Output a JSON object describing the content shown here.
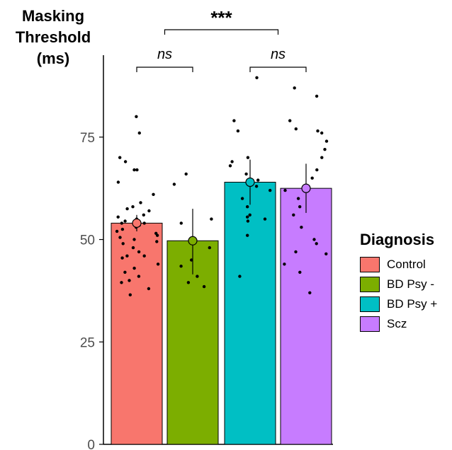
{
  "chart_data": {
    "type": "bar",
    "ylabel": "Masking Threshold (ms)",
    "ylabel_lines": [
      "Masking",
      "Threshold",
      "(ms)"
    ],
    "ylim": [
      0,
      95
    ],
    "yticks": [
      0,
      25,
      50,
      75
    ],
    "grid": false,
    "legend_placement": "right",
    "categories": [
      "Control",
      "BD Psy -",
      "BD Psy +",
      "Scz"
    ],
    "values": [
      54,
      49.7,
      64,
      62.5
    ],
    "error_low": [
      52.0,
      41.5,
      58.5,
      56.5
    ],
    "error_high": [
      56.0,
      57.5,
      69.5,
      68.5
    ],
    "colors": [
      "#F8766D",
      "#7CAE00",
      "#00BFC4",
      "#C77CFF"
    ],
    "points": [
      [
        80,
        76,
        70,
        69,
        67,
        67,
        64,
        61,
        59,
        58,
        57.5,
        57,
        56,
        55.5,
        55,
        54.5,
        54,
        54,
        53.5,
        53,
        52.5,
        52,
        51.5,
        51,
        50.5,
        50,
        49.5,
        49,
        48,
        47,
        46,
        46,
        45.5,
        44,
        43,
        42,
        41,
        40,
        39.5,
        38,
        36.5
      ],
      [
        66,
        63.5,
        55,
        54,
        48,
        45,
        43.5,
        41,
        39.5,
        38.5
      ],
      [
        89.5,
        79,
        76.5,
        70,
        69,
        68,
        66,
        64.5,
        63,
        62,
        60,
        58,
        56,
        55.5,
        55,
        54.5,
        51,
        41
      ],
      [
        87,
        85,
        79,
        77,
        76.5,
        76,
        74,
        72,
        70,
        67,
        65,
        63,
        62,
        60,
        58,
        56,
        53,
        50,
        49,
        47,
        46.5,
        44,
        42,
        37
      ]
    ],
    "comparisons": [
      {
        "from": 0,
        "to": 1,
        "label": "ns",
        "italic": true
      },
      {
        "from": 2,
        "to": 3,
        "label": "ns",
        "italic": true
      },
      {
        "from": 0.5,
        "to": 2.5,
        "label": "***",
        "italic": false
      }
    ],
    "legend": {
      "title": "Diagnosis",
      "items": [
        "Control",
        "BD Psy -",
        "BD Psy +",
        "Scz"
      ]
    }
  }
}
